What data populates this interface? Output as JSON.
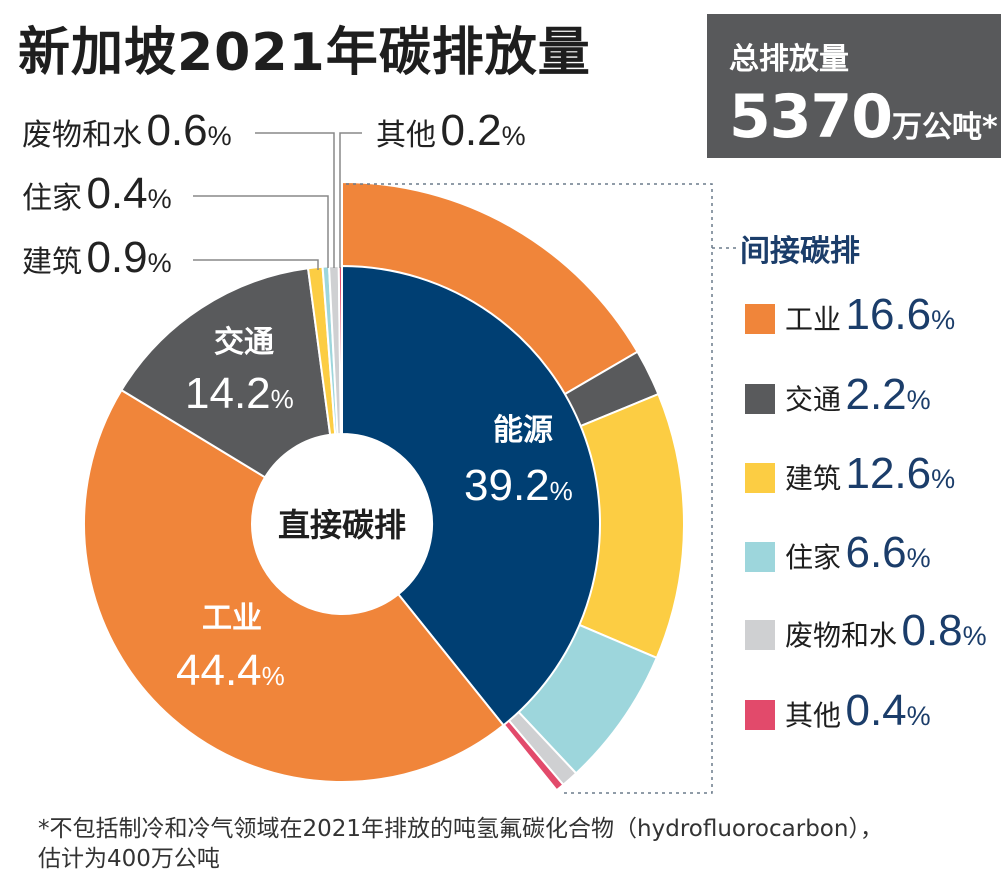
{
  "title": "新加坡2021年碳排放量",
  "total": {
    "label": "总排放量",
    "value": "5370",
    "unit": "万公吨*"
  },
  "chart_data": {
    "type": "pie",
    "title": "新加坡2021年碳排放量",
    "rings": [
      {
        "name": "直接碳排",
        "series": [
          {
            "name": "能源",
            "value": 39.2,
            "color": "#003f73"
          },
          {
            "name": "工业",
            "value": 44.4,
            "color": "#f0853a"
          },
          {
            "name": "交通",
            "value": 14.2,
            "color": "#595a5c"
          },
          {
            "name": "建筑",
            "value": 0.9,
            "color": "#fccd43"
          },
          {
            "name": "住家",
            "value": 0.4,
            "color": "#9dd6dc"
          },
          {
            "name": "废物和水",
            "value": 0.6,
            "color": "#cfd0d2"
          },
          {
            "name": "其他",
            "value": 0.2,
            "color": "#e24a6b"
          }
        ]
      },
      {
        "name": "间接碳排",
        "series": [
          {
            "name": "工业",
            "value": 16.6,
            "color": "#f0853a"
          },
          {
            "name": "交通",
            "value": 2.2,
            "color": "#595a5c"
          },
          {
            "name": "建筑",
            "value": 12.6,
            "color": "#fccd43"
          },
          {
            "name": "住家",
            "value": 6.6,
            "color": "#9dd6dc"
          },
          {
            "name": "废物和水",
            "value": 0.8,
            "color": "#cfd0d2"
          },
          {
            "name": "其他",
            "value": 0.4,
            "color": "#e24a6b"
          }
        ]
      }
    ],
    "unit": "%",
    "legend_position": "right"
  },
  "labels": {
    "center": "直接碳排",
    "energy": {
      "name": "能源",
      "value": "39.2",
      "unit": "%"
    },
    "industry": {
      "name": "工业",
      "value": "44.4",
      "unit": "%"
    },
    "transport": {
      "name": "交通",
      "value": "14.2",
      "unit": "%"
    }
  },
  "callouts": {
    "waste": {
      "name": "废物和水",
      "value": "0.6",
      "unit": "%"
    },
    "other": {
      "name": "其他",
      "value": "0.2",
      "unit": "%"
    },
    "household": {
      "name": "住家",
      "value": "0.4",
      "unit": "%"
    },
    "building": {
      "name": "建筑",
      "value": "0.9",
      "unit": "%"
    }
  },
  "legend": {
    "title": "间接碳排",
    "items": [
      {
        "name": "工业",
        "value": "16.6",
        "unit": "%",
        "color": "#f0853a"
      },
      {
        "name": "交通",
        "value": "2.2",
        "unit": "%",
        "color": "#595a5c"
      },
      {
        "name": "建筑",
        "value": "12.6",
        "unit": "%",
        "color": "#fccd43"
      },
      {
        "name": "住家",
        "value": "6.6",
        "unit": "%",
        "color": "#9dd6dc"
      },
      {
        "name": "废物和水",
        "value": "0.8",
        "unit": "%",
        "color": "#cfd0d2"
      },
      {
        "name": "其他",
        "value": "0.4",
        "unit": "%",
        "color": "#e24a6b"
      }
    ]
  },
  "footnote": {
    "line1": "*不包括制冷和冷气领域在2021年排放的吨氢氟碳化合物（hydrofluorocarbon），",
    "line2": "估计为400万公吨"
  }
}
